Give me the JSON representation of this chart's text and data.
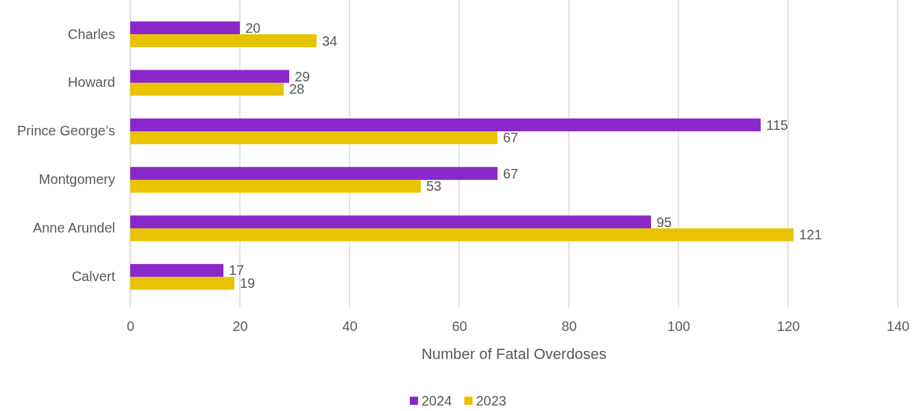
{
  "chart_data": {
    "type": "bar",
    "orientation": "horizontal",
    "xlabel": "Number of Fatal Overdoses",
    "categories": [
      "Charles",
      "Howard",
      "Prince George’s",
      "Montgomery",
      "Anne Arundel",
      "Calvert"
    ],
    "series": [
      {
        "name": "2024",
        "color": "#8b28cc",
        "values": [
          20,
          29,
          115,
          67,
          95,
          17
        ]
      },
      {
        "name": "2023",
        "color": "#e8c400",
        "values": [
          34,
          28,
          67,
          53,
          121,
          19
        ]
      }
    ],
    "xlim": [
      0,
      140
    ],
    "xticks": [
      0,
      20,
      40,
      60,
      80,
      100,
      120,
      140
    ],
    "grid": "x",
    "legend": "bottom",
    "data_labels": true
  }
}
